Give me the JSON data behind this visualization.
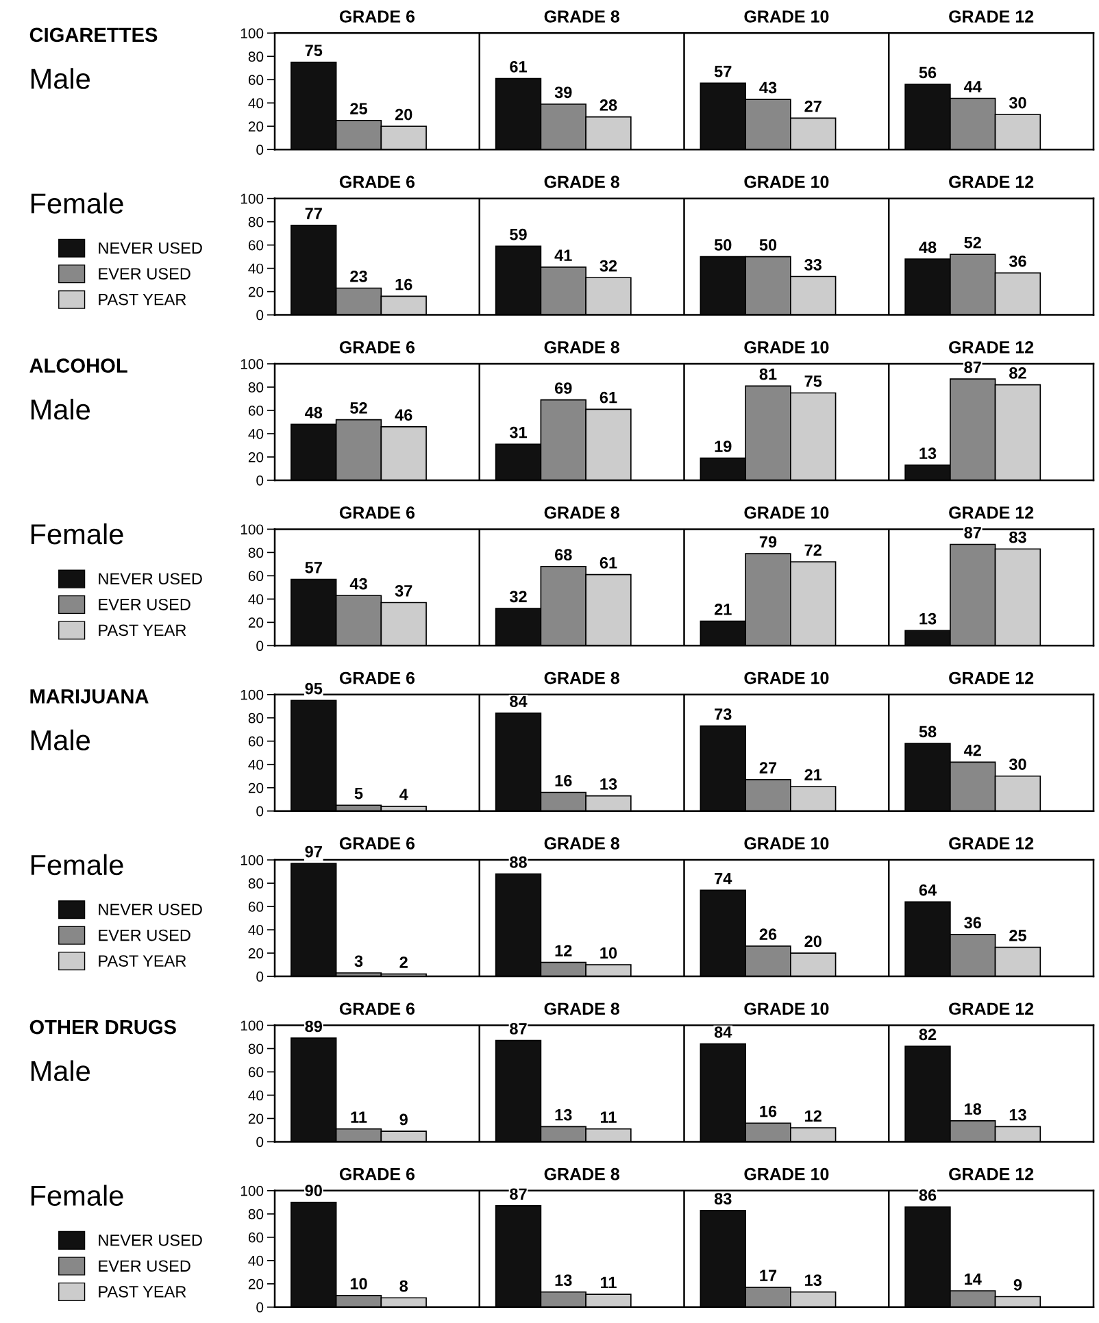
{
  "chart_data": [
    {
      "type": "bar",
      "annotations": [
        "CIGARETTES",
        "Male"
      ],
      "categories": [
        "GRADE 6",
        "GRADE 8",
        "GRADE 10",
        "GRADE 12"
      ],
      "series": [
        {
          "color": "#111111",
          "values": [
            75,
            61,
            57,
            56
          ]
        },
        {
          "color": "#888888",
          "values": [
            25,
            39,
            43,
            44
          ]
        },
        {
          "color": "#cccccc",
          "values": [
            20,
            28,
            27,
            30
          ]
        }
      ],
      "ylim": [
        0,
        100
      ],
      "yticks": [
        0,
        20,
        40,
        60,
        80,
        100
      ],
      "data_labels": true
    },
    {
      "type": "bar",
      "annotations": [
        "Female"
      ],
      "legend": "left",
      "categories": [
        "GRADE 6",
        "GRADE 8",
        "GRADE 10",
        "GRADE 12"
      ],
      "series": [
        {
          "name": "NEVER USED",
          "color": "#111111",
          "values": [
            77,
            59,
            50,
            48
          ]
        },
        {
          "name": "EVER USED",
          "color": "#888888",
          "values": [
            23,
            41,
            50,
            52
          ]
        },
        {
          "name": "PAST YEAR",
          "color": "#cccccc",
          "values": [
            16,
            32,
            33,
            36
          ]
        }
      ],
      "ylim": [
        0,
        100
      ],
      "yticks": [
        0,
        20,
        40,
        60,
        80,
        100
      ],
      "data_labels": true
    },
    {
      "type": "bar",
      "annotations": [
        "ALCOHOL",
        "Male"
      ],
      "categories": [
        "GRADE 6",
        "GRADE 8",
        "GRADE 10",
        "GRADE 12"
      ],
      "series": [
        {
          "color": "#111111",
          "values": [
            48,
            31,
            19,
            13
          ]
        },
        {
          "color": "#888888",
          "values": [
            52,
            69,
            81,
            87
          ]
        },
        {
          "color": "#cccccc",
          "values": [
            46,
            61,
            75,
            82
          ]
        }
      ],
      "ylim": [
        0,
        100
      ],
      "yticks": [
        0,
        20,
        40,
        60,
        80,
        100
      ],
      "data_labels": true
    },
    {
      "type": "bar",
      "annotations": [
        "Female"
      ],
      "legend": "left",
      "categories": [
        "GRADE 6",
        "GRADE 8",
        "GRADE 10",
        "GRADE 12"
      ],
      "series": [
        {
          "name": "NEVER USED",
          "color": "#111111",
          "values": [
            57,
            32,
            21,
            13
          ]
        },
        {
          "name": "EVER USED",
          "color": "#888888",
          "values": [
            43,
            68,
            79,
            87
          ]
        },
        {
          "name": "PAST YEAR",
          "color": "#cccccc",
          "values": [
            37,
            61,
            72,
            83
          ]
        }
      ],
      "ylim": [
        0,
        100
      ],
      "yticks": [
        0,
        20,
        40,
        60,
        80,
        100
      ],
      "data_labels": true
    },
    {
      "type": "bar",
      "annotations": [
        "MARIJUANA",
        "Male"
      ],
      "categories": [
        "GRADE 6",
        "GRADE 8",
        "GRADE 10",
        "GRADE 12"
      ],
      "series": [
        {
          "color": "#111111",
          "values": [
            95,
            84,
            73,
            58
          ]
        },
        {
          "color": "#888888",
          "values": [
            5,
            16,
            27,
            42
          ]
        },
        {
          "color": "#cccccc",
          "values": [
            4,
            13,
            21,
            30
          ]
        }
      ],
      "ylim": [
        0,
        100
      ],
      "yticks": [
        0,
        20,
        40,
        60,
        80,
        100
      ],
      "data_labels": true
    },
    {
      "type": "bar",
      "annotations": [
        "Female"
      ],
      "legend": "left",
      "categories": [
        "GRADE 6",
        "GRADE 8",
        "GRADE 10",
        "GRADE 12"
      ],
      "series": [
        {
          "name": "NEVER USED",
          "color": "#111111",
          "values": [
            97,
            88,
            74,
            64
          ]
        },
        {
          "name": "EVER USED",
          "color": "#888888",
          "values": [
            3,
            12,
            26,
            36
          ]
        },
        {
          "name": "PAST YEAR",
          "color": "#cccccc",
          "values": [
            2,
            10,
            20,
            25
          ]
        }
      ],
      "ylim": [
        0,
        100
      ],
      "yticks": [
        0,
        20,
        40,
        60,
        80,
        100
      ],
      "data_labels": true
    },
    {
      "type": "bar",
      "annotations": [
        "OTHER DRUGS",
        "Male"
      ],
      "categories": [
        "GRADE 6",
        "GRADE 8",
        "GRADE 10",
        "GRADE 12"
      ],
      "series": [
        {
          "color": "#111111",
          "values": [
            89,
            87,
            84,
            82
          ]
        },
        {
          "color": "#888888",
          "values": [
            11,
            13,
            16,
            18
          ]
        },
        {
          "color": "#cccccc",
          "values": [
            9,
            11,
            12,
            13
          ]
        }
      ],
      "ylim": [
        0,
        100
      ],
      "yticks": [
        0,
        20,
        40,
        60,
        80,
        100
      ],
      "data_labels": true
    },
    {
      "type": "bar",
      "annotations": [
        "Female"
      ],
      "legend": "left",
      "categories": [
        "GRADE 6",
        "GRADE 8",
        "GRADE 10",
        "GRADE 12"
      ],
      "series": [
        {
          "name": "NEVER USED",
          "color": "#111111",
          "values": [
            90,
            87,
            83,
            86
          ]
        },
        {
          "name": "EVER USED",
          "color": "#888888",
          "values": [
            10,
            13,
            17,
            14
          ]
        },
        {
          "name": "PAST YEAR",
          "color": "#cccccc",
          "values": [
            8,
            11,
            13,
            9
          ]
        }
      ],
      "ylim": [
        0,
        100
      ],
      "yticks": [
        0,
        20,
        40,
        60,
        80,
        100
      ],
      "data_labels": true
    }
  ]
}
